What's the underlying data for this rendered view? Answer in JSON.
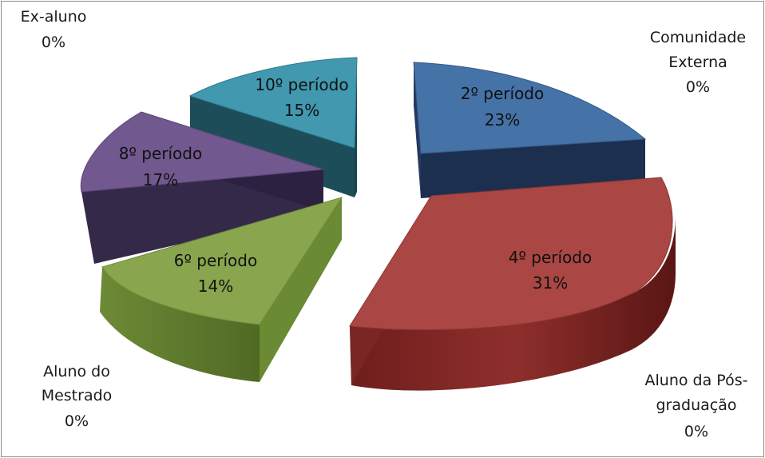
{
  "chart_data": {
    "type": "pie",
    "style": "3d-exploded",
    "slices": [
      {
        "label": "2º período",
        "value": 23,
        "percent_label": "23%",
        "color": "#4572A7"
      },
      {
        "label": "4º período",
        "value": 31,
        "percent_label": "31%",
        "color": "#AA4643"
      },
      {
        "label": "Aluno da Pós-graduação",
        "value": 0,
        "percent_label": "0%",
        "color": "#DB843D"
      },
      {
        "label": "Aluno do Mestrado",
        "value": 0,
        "percent_label": "0%",
        "color": "#3D96AE"
      },
      {
        "label": "6º período",
        "value": 14,
        "percent_label": "14%",
        "color": "#89A54E"
      },
      {
        "label": "8º período",
        "value": 17,
        "percent_label": "17%",
        "color": "#71588F"
      },
      {
        "label": "10º período",
        "value": 15,
        "percent_label": "15%",
        "color": "#4198AF"
      },
      {
        "label": "Ex-aluno",
        "value": 0,
        "percent_label": "0%",
        "color": "#B5CA92"
      },
      {
        "label": "Comunidade Externa",
        "value": 0,
        "percent_label": "0%",
        "color": "#80699B"
      }
    ]
  },
  "labels": {
    "comunidade_line1": "Comunidade",
    "comunidade_line2": "Externa",
    "comunidade_pct": "0%",
    "exaluno_line1": "Ex-aluno",
    "exaluno_pct": "0%",
    "posgrad_line1": "Aluno da Pós-",
    "posgrad_line2": "graduação",
    "posgrad_pct": "0%",
    "mestrado_line1": "Aluno do",
    "mestrado_line2": "Mestrado",
    "mestrado_pct": "0%"
  }
}
